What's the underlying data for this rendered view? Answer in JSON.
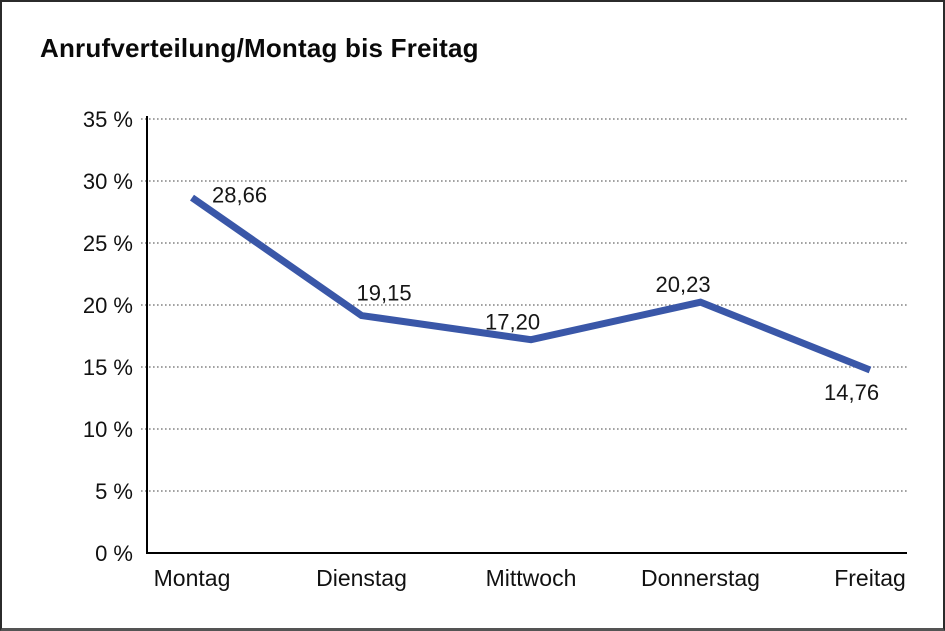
{
  "frame": {
    "background": "#ffffff",
    "border_color": "#2b2b2b"
  },
  "title": "Anrufverteilung/Montag bis Freitag",
  "chart_data": {
    "type": "line",
    "title": "Anrufverteilung/Montag bis Freitag",
    "categories": [
      "Montag",
      "Dienstag",
      "Mittwoch",
      "Donnerstag",
      "Freitag"
    ],
    "values": [
      28.66,
      19.15,
      17.2,
      20.23,
      14.76
    ],
    "value_labels": [
      "28,66",
      "19,15",
      "17,20",
      "20,23",
      "14,76"
    ],
    "xlabel": "",
    "ylabel": "",
    "ylim": [
      0,
      35
    ],
    "ytick_step": 5,
    "ytick_labels": [
      "0 %",
      "5 %",
      "10 %",
      "15 %",
      "20 %",
      "25 %",
      "30 %",
      "35 %"
    ],
    "grid": "horizontal-dotted",
    "legend": "none",
    "line_color": "#3A57A8",
    "line_width": 7,
    "axis_color": "#000000",
    "gridline_color": "#6a6a6a",
    "text_color": "#111111"
  }
}
